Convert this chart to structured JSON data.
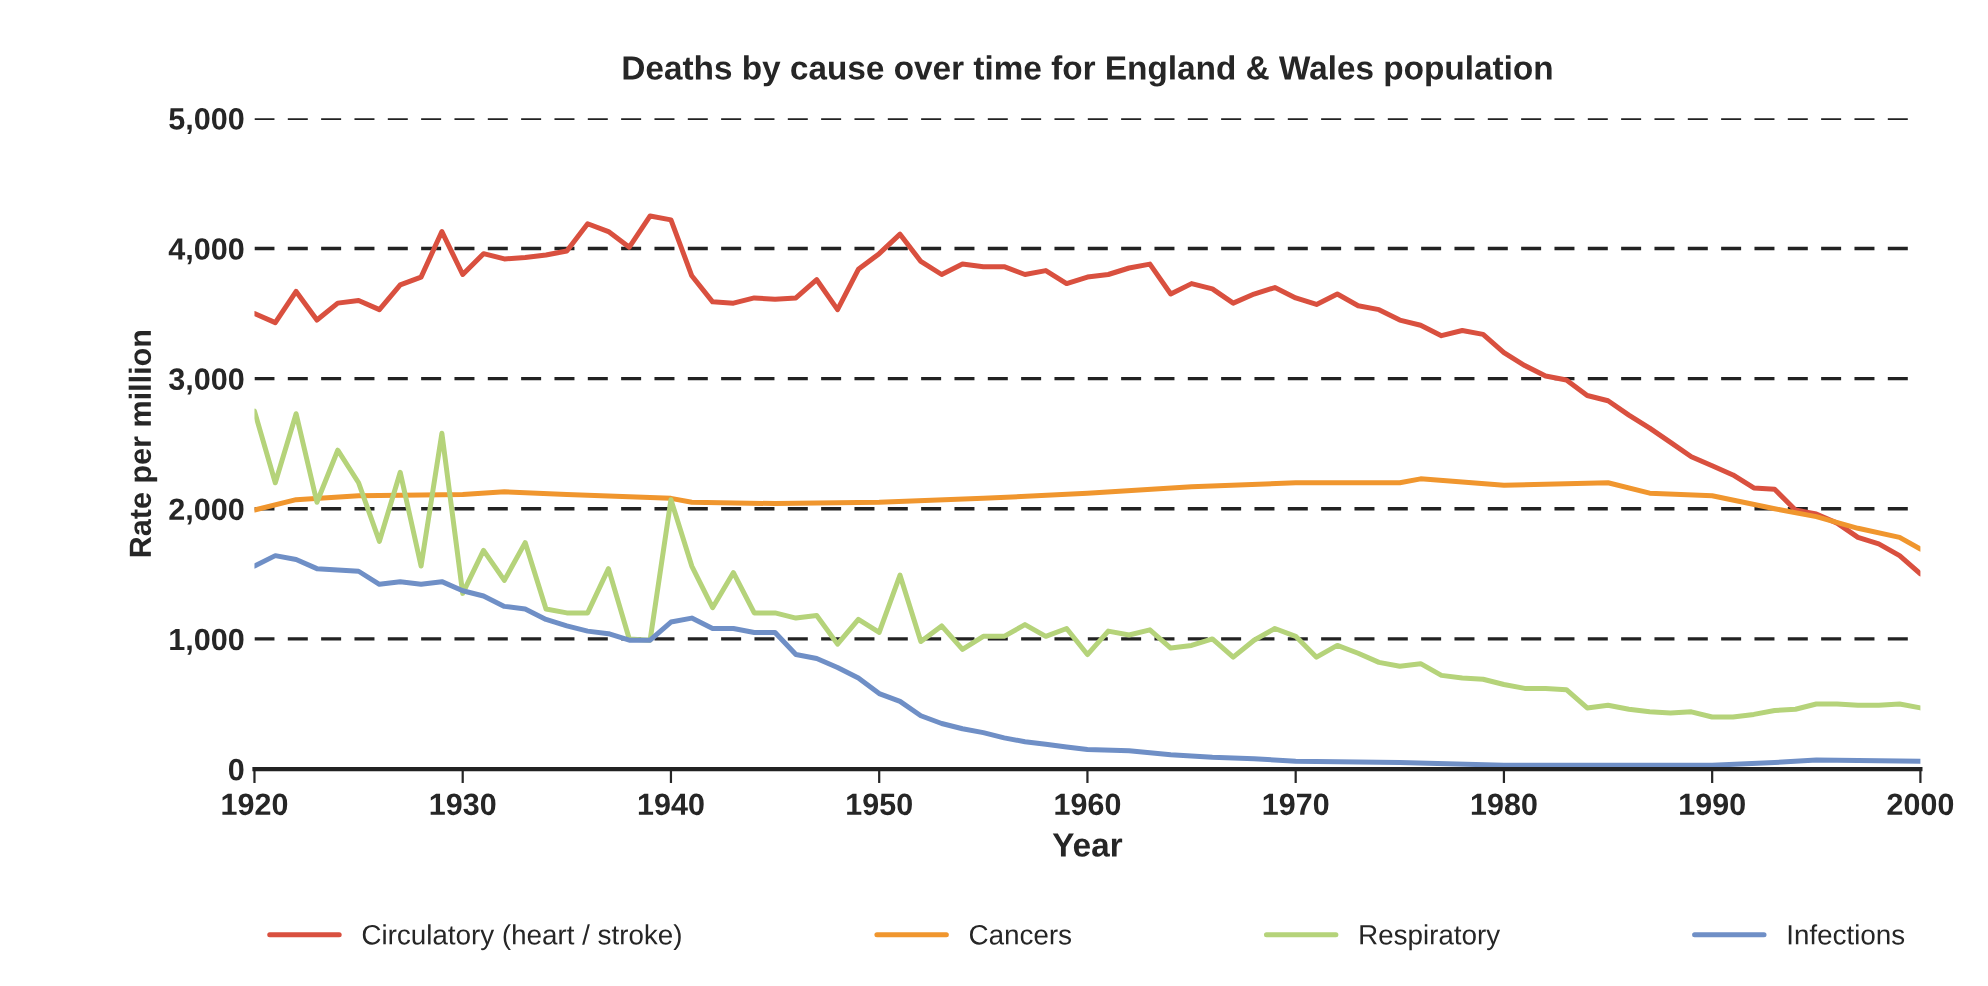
{
  "chart_data": {
    "type": "line",
    "title": "Deaths by cause over time for England & Wales population",
    "xlabel": "Year",
    "ylabel": "Rate per million",
    "xlim": [
      1920,
      2000
    ],
    "xticks": [
      1920,
      1930,
      1940,
      1950,
      1960,
      1970,
      1980,
      1990,
      2000
    ],
    "ylim": [
      0,
      5000
    ],
    "yticks": [
      {
        "value": 0,
        "label": "0"
      },
      {
        "value": 1000,
        "label": "1,000"
      },
      {
        "value": 2000,
        "label": "2,000"
      },
      {
        "value": 3000,
        "label": "3,000"
      },
      {
        "value": 4000,
        "label": "4,000"
      },
      {
        "value": 5000,
        "label": "5,000"
      }
    ],
    "grid": "y",
    "legend": "bottom",
    "marker": "none",
    "line_style": "solid",
    "series": [
      {
        "name": "Circulatory (heart / stroke)",
        "color": "#d9503f",
        "x": [
          1920,
          1921,
          1922,
          1923,
          1924,
          1925,
          1926,
          1927,
          1928,
          1929,
          1930,
          1931,
          1932,
          1933,
          1934,
          1935,
          1936,
          1937,
          1938,
          1939,
          1940,
          1941,
          1942,
          1943,
          1944,
          1945,
          1946,
          1947,
          1948,
          1949,
          1950,
          1951,
          1952,
          1953,
          1954,
          1955,
          1956,
          1957,
          1958,
          1959,
          1960,
          1961,
          1962,
          1963,
          1964,
          1965,
          1966,
          1967,
          1968,
          1969,
          1970,
          1971,
          1972,
          1973,
          1974,
          1975,
          1976,
          1977,
          1978,
          1979,
          1980,
          1981,
          1982,
          1983,
          1984,
          1985,
          1986,
          1987,
          1988,
          1989,
          1990,
          1991,
          1992,
          1993,
          1994,
          1995,
          1996,
          1997,
          1998,
          1999,
          2000
        ],
        "values": [
          3500,
          3430,
          3670,
          3450,
          3580,
          3600,
          3530,
          3720,
          3780,
          4130,
          3800,
          3960,
          3920,
          3930,
          3950,
          3980,
          4190,
          4130,
          4010,
          4250,
          4220,
          3790,
          3590,
          3580,
          3620,
          3610,
          3620,
          3760,
          3530,
          3840,
          3960,
          4110,
          3900,
          3800,
          3880,
          3860,
          3860,
          3800,
          3830,
          3730,
          3780,
          3800,
          3850,
          3880,
          3650,
          3730,
          3690,
          3580,
          3650,
          3700,
          3620,
          3570,
          3650,
          3560,
          3530,
          3450,
          3410,
          3330,
          3370,
          3340,
          3200,
          3100,
          3020,
          2990,
          2870,
          2830,
          2720,
          2620,
          2510,
          2400,
          2330,
          2260,
          2160,
          2150,
          1990,
          1960,
          1890,
          1780,
          1730,
          1640,
          1500
        ]
      },
      {
        "name": "Cancers",
        "color": "#f0962e",
        "x": [
          1920,
          1922,
          1925,
          1930,
          1932,
          1935,
          1940,
          1941,
          1945,
          1950,
          1955,
          1960,
          1965,
          1970,
          1975,
          1976,
          1980,
          1985,
          1987,
          1990,
          1993,
          1995,
          1997,
          1999,
          2000
        ],
        "values": [
          1990,
          2070,
          2100,
          2110,
          2130,
          2110,
          2080,
          2050,
          2040,
          2050,
          2080,
          2120,
          2170,
          2200,
          2200,
          2230,
          2180,
          2200,
          2120,
          2100,
          2000,
          1940,
          1850,
          1780,
          1690
        ]
      },
      {
        "name": "Respiratory",
        "color": "#b5d37a",
        "x": [
          1920,
          1921,
          1922,
          1923,
          1924,
          1925,
          1926,
          1927,
          1928,
          1929,
          1930,
          1931,
          1932,
          1933,
          1934,
          1935,
          1936,
          1937,
          1938,
          1939,
          1940,
          1941,
          1942,
          1943,
          1944,
          1945,
          1946,
          1947,
          1948,
          1949,
          1950,
          1951,
          1952,
          1953,
          1954,
          1955,
          1956,
          1957,
          1958,
          1959,
          1960,
          1961,
          1962,
          1963,
          1964,
          1965,
          1966,
          1967,
          1968,
          1969,
          1970,
          1971,
          1972,
          1973,
          1974,
          1975,
          1976,
          1977,
          1978,
          1979,
          1980,
          1981,
          1982,
          1983,
          1984,
          1985,
          1986,
          1987,
          1988,
          1989,
          1990,
          1991,
          1992,
          1993,
          1994,
          1995,
          1996,
          1997,
          1998,
          1999,
          2000
        ],
        "values": [
          2750,
          2200,
          2730,
          2050,
          2450,
          2200,
          1750,
          2280,
          1560,
          2580,
          1350,
          1680,
          1450,
          1740,
          1230,
          1200,
          1200,
          1540,
          1000,
          990,
          2070,
          1560,
          1240,
          1510,
          1200,
          1200,
          1160,
          1180,
          960,
          1150,
          1050,
          1490,
          980,
          1100,
          920,
          1020,
          1020,
          1110,
          1020,
          1080,
          880,
          1060,
          1030,
          1070,
          930,
          950,
          1000,
          860,
          990,
          1080,
          1020,
          860,
          950,
          890,
          820,
          790,
          810,
          720,
          700,
          690,
          650,
          620,
          620,
          610,
          470,
          490,
          460,
          440,
          430,
          440,
          400,
          400,
          420,
          450,
          460,
          500,
          500,
          490,
          490,
          500,
          470
        ]
      },
      {
        "name": "Infections",
        "color": "#6f8fc6",
        "x": [
          1920,
          1921,
          1922,
          1923,
          1924,
          1925,
          1926,
          1927,
          1928,
          1929,
          1930,
          1931,
          1932,
          1933,
          1934,
          1935,
          1936,
          1937,
          1938,
          1939,
          1940,
          1941,
          1942,
          1943,
          1944,
          1945,
          1946,
          1947,
          1948,
          1949,
          1950,
          1951,
          1952,
          1953,
          1954,
          1955,
          1956,
          1957,
          1958,
          1959,
          1960,
          1962,
          1964,
          1966,
          1968,
          1970,
          1975,
          1980,
          1990,
          1993,
          1995,
          2000
        ],
        "values": [
          1560,
          1640,
          1610,
          1540,
          1530,
          1520,
          1420,
          1440,
          1420,
          1440,
          1370,
          1330,
          1250,
          1230,
          1150,
          1100,
          1060,
          1040,
          990,
          990,
          1130,
          1160,
          1080,
          1080,
          1050,
          1050,
          880,
          850,
          780,
          700,
          580,
          520,
          410,
          350,
          310,
          280,
          240,
          210,
          190,
          170,
          150,
          140,
          110,
          90,
          80,
          60,
          50,
          30,
          30,
          50,
          70,
          60
        ]
      }
    ]
  }
}
